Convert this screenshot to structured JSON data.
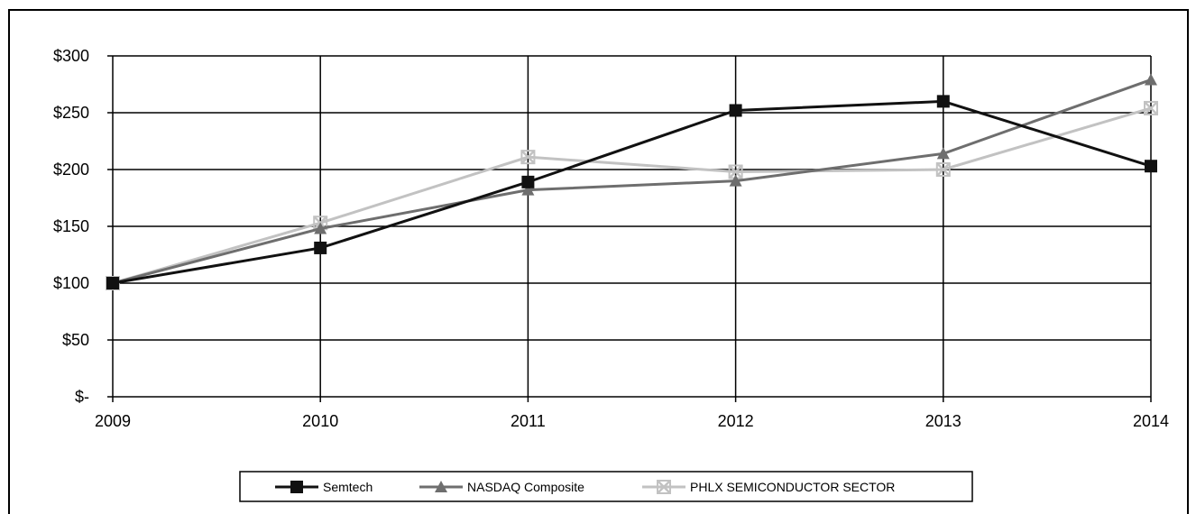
{
  "chart_data": {
    "type": "line",
    "title": "",
    "xlabel": "",
    "ylabel": "",
    "categories": [
      "2009",
      "2010",
      "2011",
      "2012",
      "2013",
      "2014"
    ],
    "ylim": [
      0,
      300
    ],
    "yticks": [
      0,
      50,
      100,
      150,
      200,
      250,
      300
    ],
    "ytick_labels": [
      "$-",
      "$50",
      "$100",
      "$150",
      "$200",
      "$250",
      "$300"
    ],
    "grid": true,
    "legend_position": "bottom",
    "series": [
      {
        "name": "Semtech",
        "values": [
          100,
          131,
          189,
          252,
          260,
          203
        ],
        "color": "#111111",
        "marker": "square"
      },
      {
        "name": "NASDAQ Composite",
        "values": [
          100,
          148,
          182,
          190,
          214,
          279
        ],
        "color": "#6e6e6e",
        "marker": "triangle"
      },
      {
        "name": "PHLX SEMICONDUCTOR SECTOR",
        "values": [
          100,
          153,
          211,
          198,
          200,
          254
        ],
        "color": "#c2c2c2",
        "marker": "x-square"
      }
    ]
  }
}
